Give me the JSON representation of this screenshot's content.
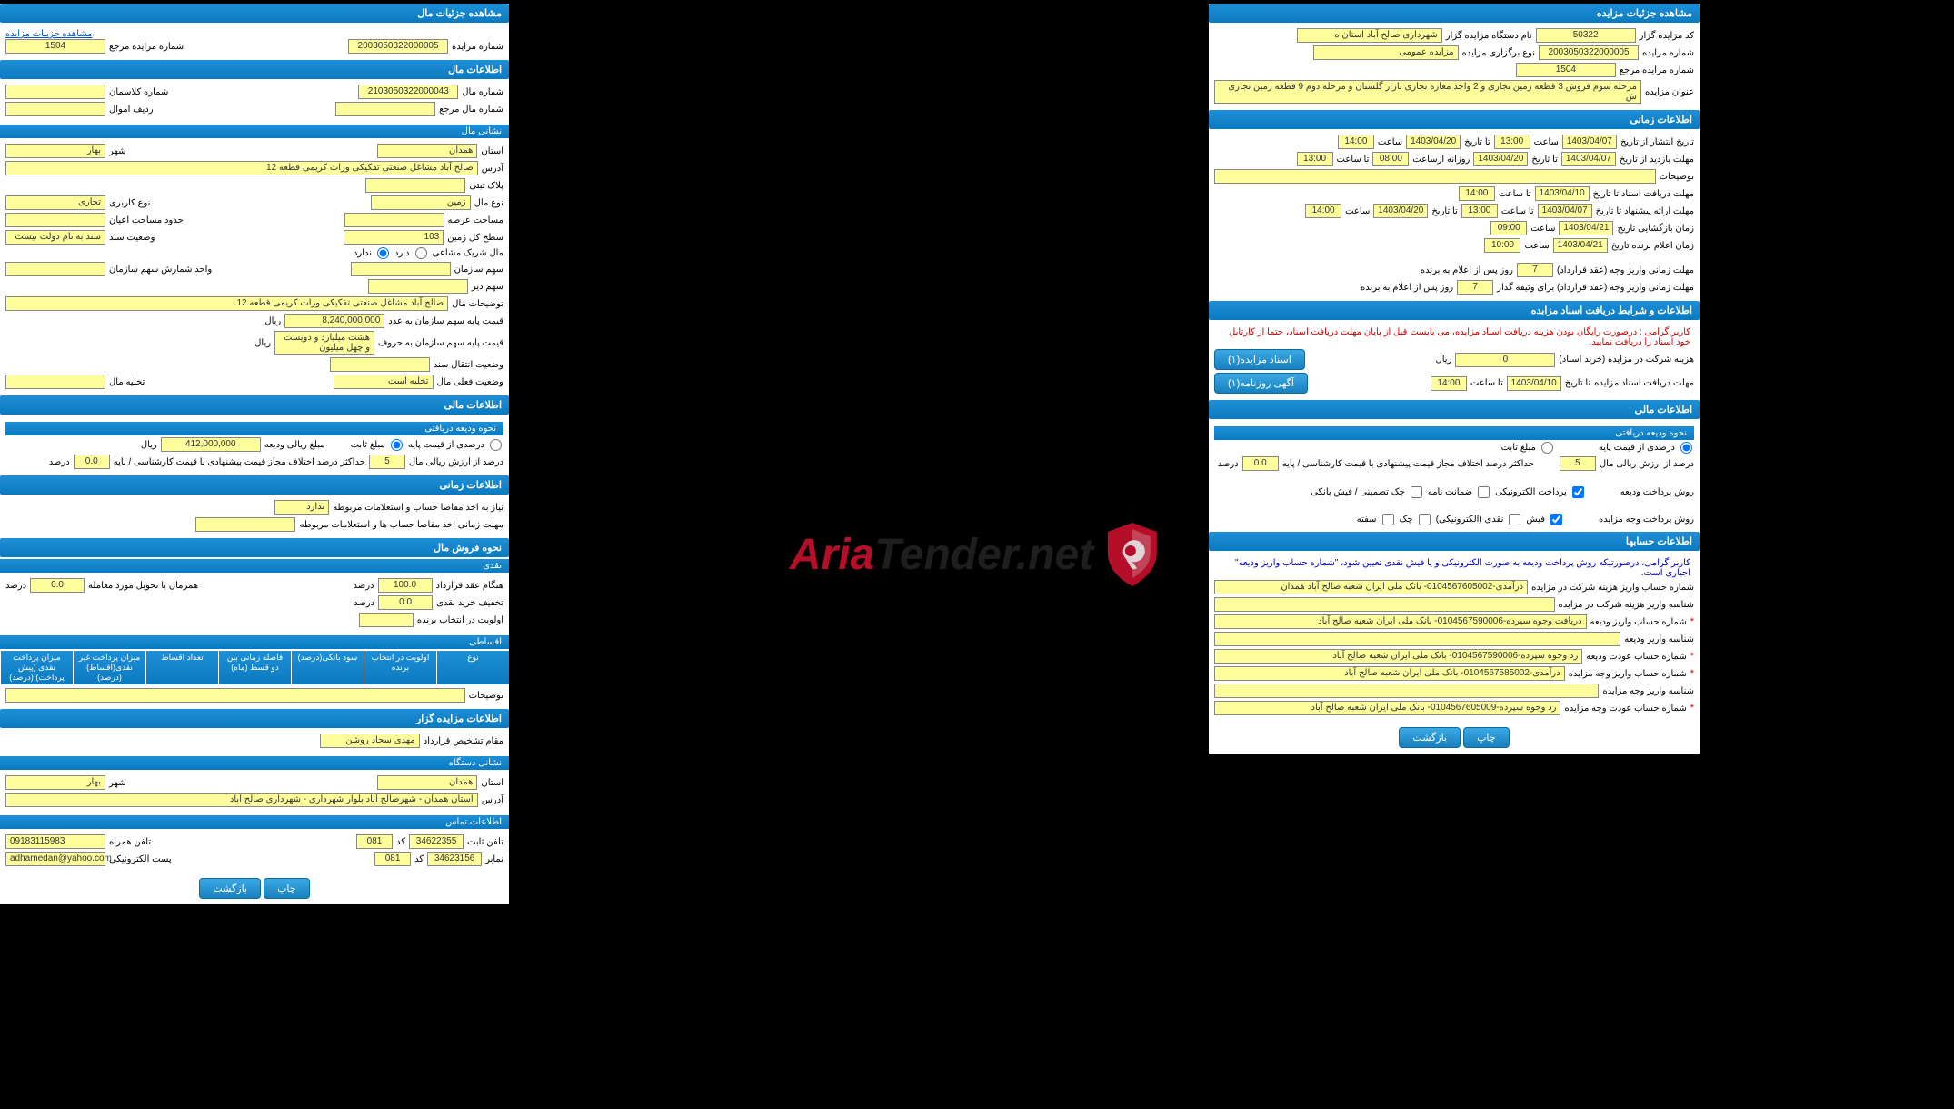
{
  "watermark": {
    "text1": "Aria",
    "text2": "Tender.net",
    "logo_color": "#c8102e"
  },
  "right": {
    "h1": "مشاهده جزئیات مزایده",
    "r1": {
      "l1": "کد مزایده گزار",
      "v1": "50322",
      "l2": "نام دستگاه مزایده گزار",
      "v2": "شهرداری صالح آباد استان ه"
    },
    "r2": {
      "l1": "شماره مزایده",
      "v1": "2003050322000005",
      "l2": "نوع برگزاری مزایده",
      "v2": "مزایده عمومی"
    },
    "r3": {
      "l1": "شماره مزایده مرجع",
      "v1": "1504"
    },
    "r4": {
      "l1": "عنوان مزایده",
      "v1": "مرحله سوم فروش 3 قطعه زمین تجاری و 2 واحد مغازه تجاری بازار گلستان و مرحله دوم 9 قطعه زمین تجاری ش"
    },
    "h2": "اطلاعات زمانی",
    "time_rows": [
      {
        "l1": "تاریخ انتشار از تاریخ",
        "d1": "1403/04/07",
        "l2": "ساعت",
        "t1": "13:00",
        "l3": "تا تاریخ",
        "d2": "1403/04/20",
        "l4": "ساعت",
        "t2": "14:00"
      },
      {
        "l1": "مهلت بازدید از تاریخ",
        "d1": "1403/04/07",
        "l2": "",
        "t1": "",
        "l3": "تا تاریخ",
        "d2": "1403/04/20",
        "l4": "روزانه ازساعت",
        "t2": "08:00",
        "l5": "تا ساعت",
        "t3": "13:00"
      },
      {
        "l1": "توضیحات",
        "full": ""
      },
      {
        "l1": "مهلت دریافت اسناد  تا تاریخ",
        "d1": "1403/04/10",
        "l2": "تا ساعت",
        "t1": "14:00"
      },
      {
        "l1": "مهلت ارائه پیشنهاد  تا تاریخ",
        "d1": "1403/04/07",
        "l2": "تا ساعت",
        "t1": "13:00",
        "l3": "تا تاریخ",
        "d2": "1403/04/20",
        "l4": "ساعت",
        "t2": "14:00"
      },
      {
        "l1": "زمان بازگشایی     تاریخ",
        "d1": "1403/04/21",
        "l2": "ساعت",
        "t1": "09:00"
      },
      {
        "l1": "زمان اعلام برنده   تاریخ",
        "d1": "1403/04/21",
        "l2": "ساعت",
        "t1": "10:00"
      }
    ],
    "deadline1": {
      "l1": "مهلت زمانی واریز وجه (عقد قرارداد)",
      "v": "7",
      "l2": "روز پس از اعلام به برنده"
    },
    "deadline2": {
      "l1": "مهلت زمانی واریز وجه (عقد قرارداد) برای وثیقه گذار",
      "v": "7",
      "l2": "روز پس از اعلام به برنده"
    },
    "h3": "اطلاعات و شرایط دریافت اسناد مزایده",
    "note1": "کاربر گرامی : درصورت رایگان بودن هزینه دریافت اسناد مزایده، می بایست قبل از پایان مهلت دریافت اسناد، حتما از کارتابل خود اسناد را دریافت نمایید.",
    "cost": {
      "l": "هزینه شرکت در مزایده (خرید اسناد)",
      "v": "0",
      "u": "ریال"
    },
    "btn1": "اسناد مزایده(۱)",
    "rec_deadline": {
      "l": "مهلت دریافت اسناد مزایده",
      "l2": "تا تاریخ",
      "d": "1403/04/10",
      "l3": "تا ساعت",
      "t": "14:00"
    },
    "btn2": "آگهی روزنامه(۱)",
    "h4": "اطلاعات مالی",
    "sub1": "نحوه ودیعه دریافتی",
    "pay1": {
      "opt1": "درصدی از قیمت پایه",
      "opt2": "مبلغ ثابت"
    },
    "pay2": {
      "l": "درصد از ارزش ریالی مال",
      "v": "5",
      "l2": "حداکثر درصد اختلاف مجاز قیمت پیشنهادی با قیمت کارشناسی / پایه",
      "v2": "0.0",
      "u2": "درصد"
    },
    "paytype": {
      "l": "روش پرداخت ودیعه",
      "opts": [
        "پرداخت الکترونیکی",
        "ضمانت نامه",
        "چک تضمینی / فیش بانکی"
      ]
    },
    "paytype2": {
      "l": "روش پرداخت وجه مزایده",
      "opts": [
        "فیش",
        "نقدی (الکترونیکی)",
        "چک",
        "سفته"
      ]
    },
    "h5": "اطلاعات حسابها",
    "note2": "کاربر گرامی، درصورتیکه روش پرداخت ودیعه به صورت الکترونیکی و یا فیش نقدی تعیین شود، \"شماره حساب واریز ودیعه\" اجباری است.",
    "accounts": [
      {
        "l": "شماره حساب واریز هزینه شرکت در مزایده",
        "v": "درآمدی-0104567605002- بانک ملی ایران شعبه صالح آباد همدان"
      },
      {
        "l": "شناسه واریز هزینه شرکت در مزایده",
        "v": ""
      },
      {
        "l": "شماره حساب واریز ودیعه",
        "v": "دریافت وجوه سپرده-0104567590006- بانک ملی ایران شعبه صالح آباد",
        "star": true
      },
      {
        "l": "شناسه واریز ودیعه",
        "v": ""
      },
      {
        "l": "شماره حساب عودت ودیعه",
        "v": "رد وجوه سپرده-0104567590006- بانک ملی ایران شعبه صالح آباد",
        "star": true
      },
      {
        "l": "شماره حساب واریز وجه مزایده",
        "v": "درآمدی-0104567585002- بانک ملی ایران شعبه صالح آباد",
        "star": true
      },
      {
        "l": "شناسه واریز وجه مزایده",
        "v": ""
      },
      {
        "l": "شماره حساب عودت وجه مزایده",
        "v": "رد وجوه سپرده-0104567605009- بانک ملی ایران شعبه صالح آباد",
        "star": true
      }
    ],
    "btns": {
      "b1": "چاپ",
      "b2": "بازگشت"
    }
  },
  "left": {
    "h1": "مشاهده جزئیات مال",
    "link1": "مشاهده جزییات مزایده",
    "r1": {
      "l1": "شماره مزایده",
      "v1": "2003050322000005",
      "l2": "شماره مزایده مرجع",
      "v2": "1504"
    },
    "h2": "اطلاعات مال",
    "rows": [
      {
        "l1": "شماره مال",
        "v1": "2103050322000043",
        "l2": "شماره کلاسمان",
        "v2": ""
      },
      {
        "l1": "شماره مال مرجع",
        "v1": "",
        "l2": "ردیف اموال",
        "v2": ""
      }
    ],
    "sub1": "نشانی مال",
    "addr": [
      {
        "l1": "استان",
        "v1": "همدان",
        "l2": "شهر",
        "v2": "بهار"
      },
      {
        "l1": "آدرس",
        "v1": "صالح آباد مشاغل صنعتی تفکیکی وراث کریمی قطعه 12",
        "full": true
      },
      {
        "l1": "پلاک ثبتی",
        "v1": ""
      },
      {
        "l1": "نوع مال",
        "v1": "زمین",
        "l2": "نوع کاربری",
        "v2": "تجاری"
      },
      {
        "l1": "مساحت عرصه",
        "v1": "",
        "l2": "حدود مساحت اعیان",
        "v2": ""
      },
      {
        "l1": "سطح کل زمین",
        "v1": "103",
        "l2": "وضعیت سند",
        "v2": "سند به نام دولت نیست"
      },
      {
        "l1": "مال شریک مشاعی",
        "opts": [
          "دارد",
          "ندارد"
        ]
      },
      {
        "l1": "سهم سازمان",
        "v1": "",
        "l2": "واحد شمارش سهم سازمان",
        "v2": ""
      },
      {
        "l1": "سهم دیر",
        "v1": ""
      },
      {
        "l1": "توضیحات مال",
        "v1": "صالح آباد مشاغل صنعتی تفکیکی وراث کریمی قطعه 12",
        "full": true
      },
      {
        "l1": "قیمت پایه سهم سازمان به عدد",
        "v1": "8,240,000,000",
        "u": "ریال"
      },
      {
        "l1": "قیمت پایه سهم سازمان به حروف",
        "v1": "هشت میلیارد و دویست و چهل میلیون",
        "u": "ریال"
      },
      {
        "l1": "وضعیت انتقال سند",
        "v1": ""
      },
      {
        "l1": "وضعیت فعلی مال",
        "v1": "تخلیه است",
        "l2": "تخلیه مال",
        "v2": ""
      }
    ],
    "h3": "اطلاعات مالی",
    "sub2": "نحوه ودیعه دریافتی",
    "fin": {
      "opt1": "درصدی از قیمت پایه",
      "opt2": "مبلغ ثابت",
      "l2": "مبلغ ریالی ودیعه",
      "v2": "412,000,000",
      "u2": "ریال"
    },
    "fin2": {
      "l": "درصد از ارزش ریالی مال",
      "v": "5",
      "l2": "حداکثر درصد اختلاف مجاز قیمت پیشنهادی با قیمت کارشناسی / پایه",
      "v2": "0.0",
      "u2": "درصد"
    },
    "h4": "اطلاعات زمانی",
    "t1": {
      "l": "نیاز به اخذ مفاصا حساب و استعلامات مربوطه",
      "v": "ندارد"
    },
    "t2": {
      "l": "مهلت زمانی اخذ مفاصا حساب ها و استعلامات مربوطه",
      "v": ""
    },
    "h5": "نحوه فروش مال",
    "sale": [
      {
        "l1": "هنگام عقد قرارداد",
        "v1": "100.0",
        "u1": "درصد",
        "l2": "همزمان با تحویل مورد معامله",
        "v2": "0.0",
        "u2": "درصد"
      },
      {
        "l1": "تخفیف خرید نقدی",
        "v1": "0.0",
        "u1": "درصد"
      },
      {
        "l1": "اولویت در انتخاب برنده",
        "v1": ""
      }
    ],
    "sub3": "اقساطی",
    "tbl": [
      "نوع",
      "اولویت در انتخاب برنده",
      "سود بانکی(درصد)",
      "فاصله زمانی بین دو قسط (ماه)",
      "تعداد اقساط",
      "میزان پرداخت غیر نقدی(اقساط) (درصد)",
      "میزان پرداخت نقدی (پیش پرداخت) (درصد)"
    ],
    "desc": {
      "l": "توضیحات",
      "v": ""
    },
    "h6": "اطلاعات مزایده گزار",
    "org": {
      "l": "مقام تشخیص قرارداد",
      "v": "مهدی سجاد روشن"
    },
    "sub4": "نشانی دستگاه",
    "addr2": [
      {
        "l1": "استان",
        "v1": "همدان",
        "l2": "شهر",
        "v2": "بهار"
      },
      {
        "l1": "آدرس",
        "v1": "استان همدان - شهرصالح آباد بلوار شهرداری - شهرداری صالح آباد",
        "full": true
      }
    ],
    "sub5": "اطلاعات تماس",
    "contact": [
      {
        "l1": "تلفن ثابت",
        "v1": "34622355",
        "l2": "کد",
        "v2": "081",
        "l3": "تلفن همراه",
        "v3": "09183115983"
      },
      {
        "l1": "نمابر",
        "v1": "34623156",
        "l2": "کد",
        "v2": "081",
        "l3": "پست الکترونیکی",
        "v3": "adhamedan@yahoo.com"
      }
    ],
    "btns": {
      "b1": "چاپ",
      "b2": "بازگشت"
    }
  }
}
